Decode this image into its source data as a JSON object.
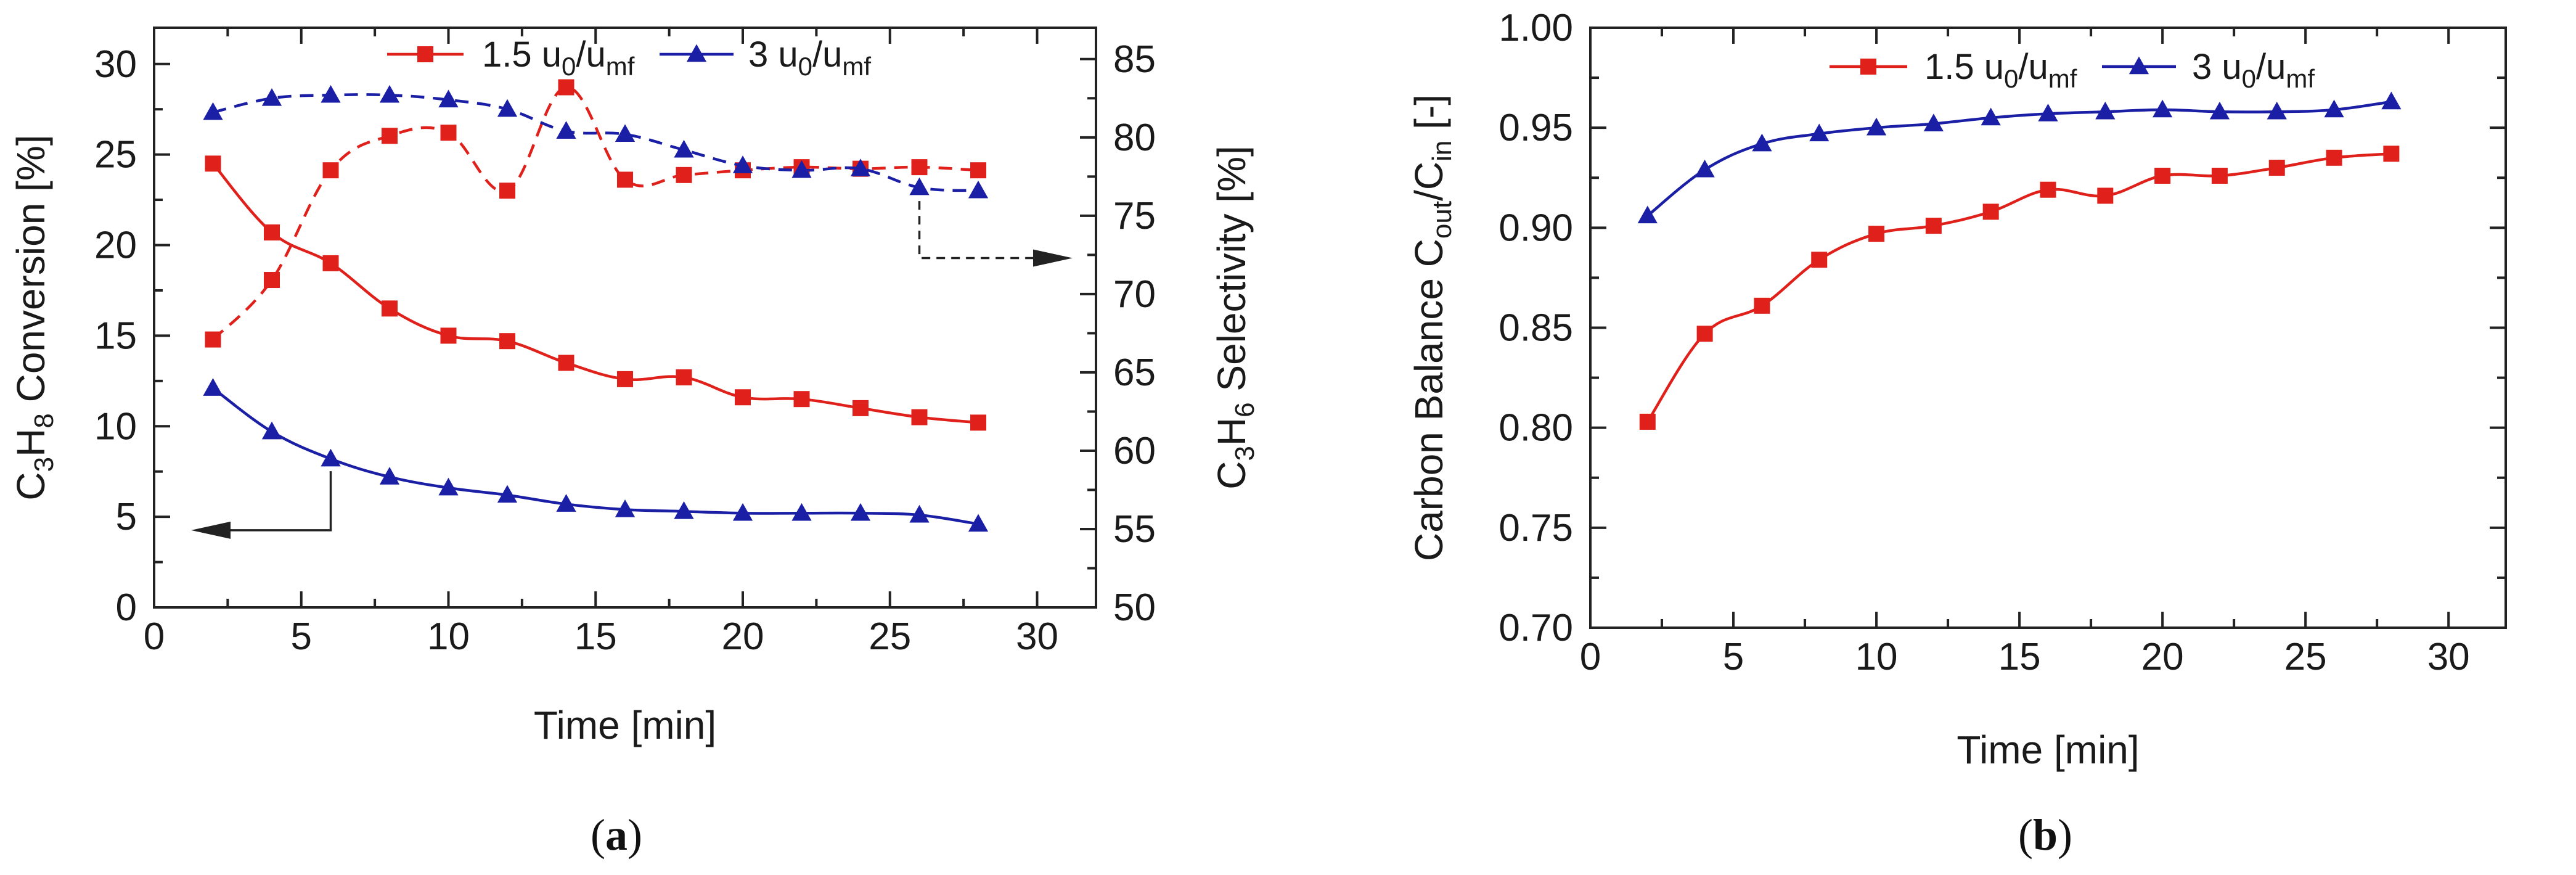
{
  "colors": {
    "series_1": "#e0211b",
    "series_2": "#1a1fa6",
    "axis": "#222222"
  },
  "chart_data": [
    {
      "panel_label": "a",
      "type": "line",
      "xlabel": "Time [min]",
      "ylabel_left": {
        "base": "C",
        "s1": "3",
        "mid": "H",
        "s2": "8",
        "rest": " Conversion [%]"
      },
      "ylabel_right": {
        "base": "C",
        "s1": "3",
        "mid": "H",
        "s2": "6",
        "rest": " Selectivity [%]"
      },
      "xlim": [
        0,
        32
      ],
      "ylim_left": [
        0,
        32
      ],
      "ylim_right": [
        50,
        87
      ],
      "x_ticks": [
        "0",
        "5",
        "10",
        "15",
        "20",
        "25",
        "30"
      ],
      "y_ticks_left": [
        "0",
        "5",
        "10",
        "15",
        "20",
        "25",
        "30"
      ],
      "y_ticks_right": [
        "50",
        "55",
        "60",
        "65",
        "70",
        "75",
        "80",
        "85"
      ],
      "legend": [
        {
          "prefix": "1.5 u",
          "sub1": "0",
          "mid": "/u",
          "sub2": "mf",
          "color": "#e0211b",
          "marker": "square"
        },
        {
          "prefix": "3 u",
          "sub1": "0",
          "mid": "/u",
          "sub2": "mf",
          "color": "#1a1fa6",
          "marker": "triangle"
        }
      ],
      "legend_position": "top-center",
      "series": [
        {
          "legend_index": 0,
          "axis": "left",
          "style": "solid",
          "marker": "square",
          "color": "#e0211b",
          "x": [
            2,
            4,
            6,
            8,
            10,
            12,
            14,
            16,
            18,
            20,
            22,
            24,
            26,
            28
          ],
          "y": [
            24.5,
            20.7,
            19.0,
            16.5,
            15.0,
            14.7,
            13.5,
            12.6,
            12.7,
            11.6,
            11.5,
            11.0,
            10.5,
            10.2
          ]
        },
        {
          "legend_index": 1,
          "axis": "left",
          "style": "solid",
          "marker": "triangle",
          "color": "#1a1fa6",
          "x": [
            2,
            4,
            6,
            8,
            10,
            12,
            14,
            16,
            18,
            20,
            22,
            24,
            26,
            28
          ],
          "y": [
            12.1,
            9.7,
            8.2,
            7.2,
            6.6,
            6.2,
            5.7,
            5.4,
            5.3,
            5.2,
            5.2,
            5.2,
            5.1,
            4.6
          ]
        },
        {
          "legend_index": 0,
          "axis": "right",
          "style": "dashed",
          "marker": "square",
          "color": "#e0211b",
          "x": [
            2,
            4,
            6,
            8,
            10,
            12,
            14,
            16,
            18,
            20,
            22,
            24,
            26,
            28
          ],
          "y": [
            67.1,
            70.9,
            77.9,
            80.1,
            80.3,
            76.6,
            83.2,
            77.3,
            77.6,
            77.9,
            78.1,
            78.0,
            78.1,
            77.9
          ]
        },
        {
          "legend_index": 1,
          "axis": "right",
          "style": "dashed",
          "marker": "triangle",
          "color": "#1a1fa6",
          "x": [
            2,
            4,
            6,
            8,
            10,
            12,
            14,
            16,
            18,
            20,
            22,
            24,
            26,
            28
          ],
          "y": [
            81.6,
            82.5,
            82.7,
            82.7,
            82.4,
            81.8,
            80.4,
            80.2,
            79.2,
            78.2,
            77.9,
            78.0,
            76.8,
            76.6
          ]
        }
      ],
      "annotations": [
        {
          "kind": "arrow",
          "from_x": 6,
          "from_y": 8.2,
          "direction": "left",
          "meaning": "solid lines read on left axis"
        },
        {
          "kind": "arrow",
          "from_x": 26,
          "from_y": 76.8,
          "direction": "right",
          "meaning": "dashed lines read on right axis"
        }
      ],
      "grid": false
    },
    {
      "panel_label": "b",
      "type": "line",
      "xlabel": "Time [min]",
      "ylabel": {
        "base": "Carbon Balance C",
        "s1": "out",
        "mid": "/C",
        "s2": "in",
        "rest": " [-]"
      },
      "xlim": [
        0,
        32
      ],
      "ylim": [
        0.7,
        1.0
      ],
      "x_ticks": [
        "0",
        "5",
        "10",
        "15",
        "20",
        "25",
        "30"
      ],
      "y_ticks": [
        "0.70",
        "0.75",
        "0.80",
        "0.85",
        "0.90",
        "0.95",
        "1.00"
      ],
      "legend": [
        {
          "prefix": "1.5 u",
          "sub1": "0",
          "mid": "/u",
          "sub2": "mf",
          "color": "#e0211b",
          "marker": "square"
        },
        {
          "prefix": "3 u",
          "sub1": "0",
          "mid": "/u",
          "sub2": "mf",
          "color": "#1a1fa6",
          "marker": "triangle"
        }
      ],
      "legend_position": "top-center",
      "series": [
        {
          "legend_index": 0,
          "style": "solid",
          "marker": "square",
          "color": "#e0211b",
          "x": [
            2,
            4,
            6,
            8,
            10,
            12,
            14,
            16,
            18,
            20,
            22,
            24,
            26,
            28
          ],
          "y": [
            0.803,
            0.847,
            0.861,
            0.884,
            0.897,
            0.901,
            0.908,
            0.919,
            0.916,
            0.926,
            0.926,
            0.93,
            0.935,
            0.937
          ]
        },
        {
          "legend_index": 1,
          "style": "solid",
          "marker": "triangle",
          "color": "#1a1fa6",
          "x": [
            2,
            4,
            6,
            8,
            10,
            12,
            14,
            16,
            18,
            20,
            22,
            24,
            26,
            28
          ],
          "y": [
            0.906,
            0.929,
            0.942,
            0.947,
            0.95,
            0.952,
            0.955,
            0.957,
            0.958,
            0.959,
            0.958,
            0.958,
            0.959,
            0.963
          ]
        }
      ],
      "grid": false
    }
  ]
}
